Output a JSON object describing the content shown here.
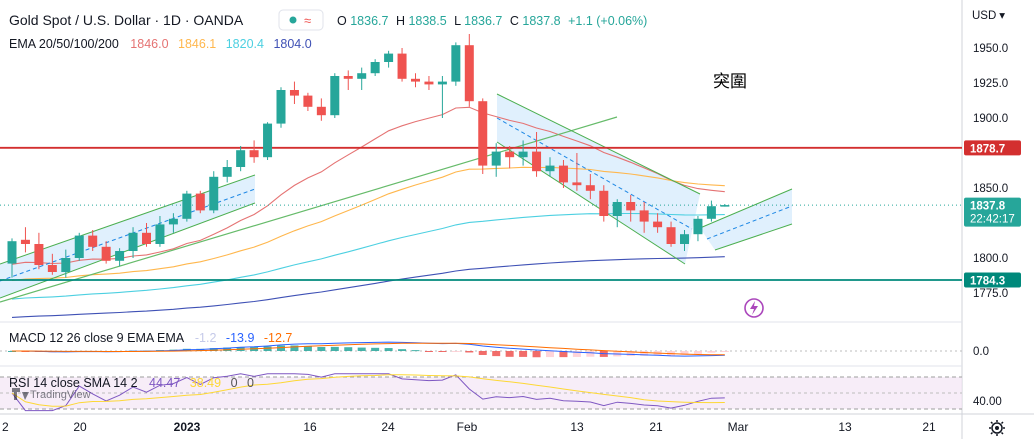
{
  "header": {
    "symbol_title": "Gold Spot / U.S. Dollar · 1D · OANDA",
    "ohlc": {
      "o_label": "O",
      "o_value": "1836.7",
      "h_label": "H",
      "h_value": "1838.5",
      "l_label": "L",
      "l_value": "1836.7",
      "c_label": "C",
      "c_value": "1837.8",
      "change": "+1.1 (+0.06%)"
    }
  },
  "ema_legend": {
    "label": "EMA 20/50/100/200",
    "values": [
      {
        "text": "1846.0",
        "color": "#e57373"
      },
      {
        "text": "1846.1",
        "color": "#ffb74d"
      },
      {
        "text": "1820.4",
        "color": "#4dd0e1"
      },
      {
        "text": "1804.0",
        "color": "#3f51b5"
      }
    ]
  },
  "macd_legend": {
    "label": "MACD 12 26 close 9 EMA EMA",
    "values": [
      {
        "text": "-1.2",
        "color": "#c5cae9"
      },
      {
        "text": "-13.9",
        "color": "#2962ff"
      },
      {
        "text": "-12.7",
        "color": "#ff6d00"
      }
    ]
  },
  "rsi_legend": {
    "label": "RSI 14 close SMA 14 2",
    "values": [
      {
        "text": "44.47",
        "color": "#7e57c2"
      },
      {
        "text": "38.49",
        "color": "#fdd835"
      },
      {
        "text": "0",
        "color": "#555555"
      },
      {
        "text": "0",
        "color": "#555555"
      }
    ]
  },
  "watermark": "TradingView",
  "annotation_text": "突圍",
  "price_axis": {
    "currency": "USD",
    "ticks": [
      "1950.0",
      "1925.0",
      "1900.0",
      "1850.0",
      "1800.0",
      "1775.0"
    ],
    "macd_tick": "0.0",
    "rsi_tick": "40.00",
    "current_price": "1837.8",
    "countdown": "22:42:17",
    "resistance_label": "1878.7",
    "support_label": "1784.3"
  },
  "time_axis": {
    "labels": [
      "2",
      "20",
      "2023",
      "16",
      "24",
      "Feb",
      "13",
      "21",
      "Mar",
      "13",
      "21"
    ]
  },
  "colors": {
    "up": "#26a69a",
    "down": "#ef5350",
    "resistance": "#d32f2f",
    "support": "#00897b",
    "channel": "#4caf50",
    "channel_fill": "#bbdefb"
  },
  "chart_data": {
    "type": "candlestick",
    "title": "Gold Spot / U.S. Dollar · 1D · OANDA",
    "y_range": [
      1768,
      1962
    ],
    "horizontal_levels": [
      {
        "name": "resistance",
        "value": 1878.7
      },
      {
        "name": "support",
        "value": 1784.3
      }
    ],
    "candles": [
      {
        "o": 1796,
        "h": 1814,
        "l": 1786,
        "c": 1812
      },
      {
        "o": 1813,
        "h": 1822,
        "l": 1804,
        "c": 1810
      },
      {
        "o": 1810,
        "h": 1818,
        "l": 1792,
        "c": 1795
      },
      {
        "o": 1795,
        "h": 1803,
        "l": 1788,
        "c": 1790
      },
      {
        "o": 1790,
        "h": 1806,
        "l": 1786,
        "c": 1800
      },
      {
        "o": 1800,
        "h": 1818,
        "l": 1798,
        "c": 1816
      },
      {
        "o": 1816,
        "h": 1820,
        "l": 1805,
        "c": 1808
      },
      {
        "o": 1808,
        "h": 1812,
        "l": 1796,
        "c": 1798
      },
      {
        "o": 1798,
        "h": 1807,
        "l": 1794,
        "c": 1805
      },
      {
        "o": 1805,
        "h": 1822,
        "l": 1800,
        "c": 1818
      },
      {
        "o": 1818,
        "h": 1825,
        "l": 1808,
        "c": 1810
      },
      {
        "o": 1810,
        "h": 1830,
        "l": 1808,
        "c": 1824
      },
      {
        "o": 1824,
        "h": 1832,
        "l": 1818,
        "c": 1828
      },
      {
        "o": 1828,
        "h": 1848,
        "l": 1826,
        "c": 1846
      },
      {
        "o": 1846,
        "h": 1848,
        "l": 1832,
        "c": 1834
      },
      {
        "o": 1834,
        "h": 1862,
        "l": 1832,
        "c": 1858
      },
      {
        "o": 1858,
        "h": 1870,
        "l": 1854,
        "c": 1865
      },
      {
        "o": 1865,
        "h": 1880,
        "l": 1862,
        "c": 1877
      },
      {
        "o": 1877,
        "h": 1884,
        "l": 1868,
        "c": 1872
      },
      {
        "o": 1872,
        "h": 1897,
        "l": 1870,
        "c": 1896
      },
      {
        "o": 1896,
        "h": 1922,
        "l": 1893,
        "c": 1920
      },
      {
        "o": 1920,
        "h": 1926,
        "l": 1910,
        "c": 1916
      },
      {
        "o": 1916,
        "h": 1918,
        "l": 1905,
        "c": 1908
      },
      {
        "o": 1908,
        "h": 1914,
        "l": 1898,
        "c": 1902
      },
      {
        "o": 1902,
        "h": 1932,
        "l": 1900,
        "c": 1930
      },
      {
        "o": 1930,
        "h": 1934,
        "l": 1920,
        "c": 1928
      },
      {
        "o": 1928,
        "h": 1936,
        "l": 1920,
        "c": 1932
      },
      {
        "o": 1932,
        "h": 1942,
        "l": 1930,
        "c": 1940
      },
      {
        "o": 1940,
        "h": 1948,
        "l": 1936,
        "c": 1946
      },
      {
        "o": 1946,
        "h": 1950,
        "l": 1926,
        "c": 1928
      },
      {
        "o": 1928,
        "h": 1932,
        "l": 1922,
        "c": 1926
      },
      {
        "o": 1926,
        "h": 1930,
        "l": 1920,
        "c": 1924
      },
      {
        "o": 1924,
        "h": 1930,
        "l": 1900,
        "c": 1926
      },
      {
        "o": 1926,
        "h": 1954,
        "l": 1923,
        "c": 1952
      },
      {
        "o": 1952,
        "h": 1960,
        "l": 1908,
        "c": 1912
      },
      {
        "o": 1912,
        "h": 1914,
        "l": 1860,
        "c": 1866
      },
      {
        "o": 1866,
        "h": 1882,
        "l": 1858,
        "c": 1876
      },
      {
        "o": 1876,
        "h": 1880,
        "l": 1864,
        "c": 1872
      },
      {
        "o": 1872,
        "h": 1884,
        "l": 1866,
        "c": 1876
      },
      {
        "o": 1876,
        "h": 1890,
        "l": 1858,
        "c": 1862
      },
      {
        "o": 1862,
        "h": 1872,
        "l": 1858,
        "c": 1866
      },
      {
        "o": 1866,
        "h": 1870,
        "l": 1850,
        "c": 1854
      },
      {
        "o": 1854,
        "h": 1875,
        "l": 1848,
        "c": 1852
      },
      {
        "o": 1852,
        "h": 1860,
        "l": 1842,
        "c": 1848
      },
      {
        "o": 1848,
        "h": 1852,
        "l": 1826,
        "c": 1830
      },
      {
        "o": 1830,
        "h": 1842,
        "l": 1822,
        "c": 1840
      },
      {
        "o": 1840,
        "h": 1845,
        "l": 1826,
        "c": 1834
      },
      {
        "o": 1834,
        "h": 1840,
        "l": 1818,
        "c": 1826
      },
      {
        "o": 1826,
        "h": 1832,
        "l": 1818,
        "c": 1822
      },
      {
        "o": 1822,
        "h": 1826,
        "l": 1808,
        "c": 1810
      },
      {
        "o": 1810,
        "h": 1820,
        "l": 1805,
        "c": 1817
      },
      {
        "o": 1817,
        "h": 1830,
        "l": 1812,
        "c": 1828
      },
      {
        "o": 1828,
        "h": 1841,
        "l": 1826,
        "c": 1837
      },
      {
        "o": 1836.7,
        "h": 1838.5,
        "l": 1836.7,
        "c": 1837.8
      }
    ],
    "ema": [
      {
        "name": "EMA 20",
        "last": 1846.0
      },
      {
        "name": "EMA 50",
        "last": 1846.1
      },
      {
        "name": "EMA 100",
        "last": 1820.4
      },
      {
        "name": "EMA 200",
        "last": 1804.0
      }
    ],
    "macd": {
      "macd": -13.9,
      "signal": -12.7,
      "histogram": -1.2
    },
    "rsi": {
      "rsi": 44.47,
      "sma": 38.49
    }
  }
}
